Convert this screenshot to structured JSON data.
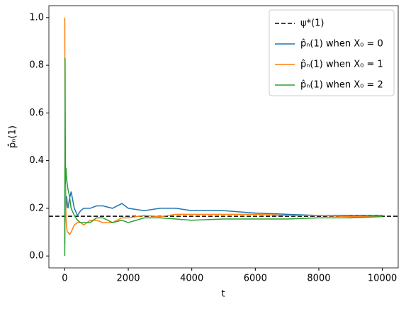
{
  "chart_data": {
    "type": "line",
    "xlabel": "t",
    "ylabel": "p̂ₙ(1)",
    "x": [
      0,
      10,
      20,
      40,
      60,
      80,
      100,
      150,
      200,
      300,
      400,
      500,
      600,
      800,
      1000,
      1200,
      1500,
      1800,
      2000,
      2500,
      3000,
      3500,
      4000,
      5000,
      6000,
      7000,
      8000,
      9000,
      10000
    ],
    "series": [
      {
        "name": "p̂ₙ(1) when X₀ = 0",
        "color": "#1f77b4",
        "values": [
          0.05,
          0.5,
          0.3,
          0.2,
          0.25,
          0.22,
          0.2,
          0.24,
          0.27,
          0.2,
          0.17,
          0.19,
          0.2,
          0.2,
          0.21,
          0.21,
          0.2,
          0.22,
          0.2,
          0.19,
          0.2,
          0.2,
          0.19,
          0.19,
          0.18,
          0.175,
          0.17,
          0.17,
          0.17
        ]
      },
      {
        "name": "p̂ₙ(1) when X₀ = 1",
        "color": "#ff7f0e",
        "values": [
          1.0,
          0.5,
          0.3,
          0.15,
          0.12,
          0.1,
          0.1,
          0.09,
          0.1,
          0.13,
          0.14,
          0.14,
          0.13,
          0.15,
          0.15,
          0.14,
          0.14,
          0.16,
          0.16,
          0.17,
          0.165,
          0.175,
          0.175,
          0.175,
          0.175,
          0.17,
          0.17,
          0.165,
          0.165
        ]
      },
      {
        "name": "p̂ₙ(1) when X₀ = 2",
        "color": "#2ca02c",
        "values": [
          0,
          0.83,
          0.3,
          0.37,
          0.32,
          0.3,
          0.28,
          0.25,
          0.2,
          0.17,
          0.15,
          0.14,
          0.14,
          0.14,
          0.16,
          0.16,
          0.14,
          0.15,
          0.14,
          0.16,
          0.16,
          0.155,
          0.15,
          0.155,
          0.155,
          0.155,
          0.16,
          0.16,
          0.165
        ]
      }
    ],
    "hline": {
      "name": "ψ*(1)",
      "value": 0.1667,
      "color": "#000000",
      "style": "dashed"
    },
    "xlim": [
      -500,
      10500
    ],
    "xticks": [
      0,
      2000,
      4000,
      6000,
      8000,
      10000
    ],
    "ylim": [
      -0.05,
      1.05
    ],
    "yticks": [
      {
        "value": 0,
        "label": "0.0"
      },
      0.2,
      0.4,
      0.6,
      0.8,
      {
        "value": 1,
        "label": "1.0"
      }
    ],
    "legend": "upper right",
    "grid": false
  }
}
